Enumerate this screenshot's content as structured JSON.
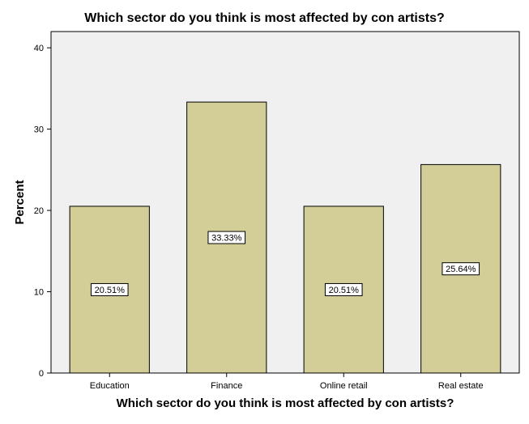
{
  "chart_data": {
    "type": "bar",
    "title": "Which sector do you think is most affected by con artists?",
    "xlabel": "Which sector do you think is most affected by con artists?",
    "ylabel": "Percent",
    "categories": [
      "Education",
      "Finance",
      "Online retail",
      "Real estate"
    ],
    "values": [
      20.51,
      33.33,
      20.51,
      25.64
    ],
    "data_labels": [
      "20.51%",
      "33.33%",
      "20.51%",
      "25.64%"
    ],
    "ylim": [
      0,
      42
    ],
    "yticks": [
      0,
      10,
      20,
      30,
      40
    ],
    "grid": false,
    "legend": "none",
    "colors": {
      "bar_fill": "#d3ce97",
      "bar_stroke": "#000000",
      "plot_background": "#f0f0f0",
      "label_box": "#ffffff"
    }
  }
}
